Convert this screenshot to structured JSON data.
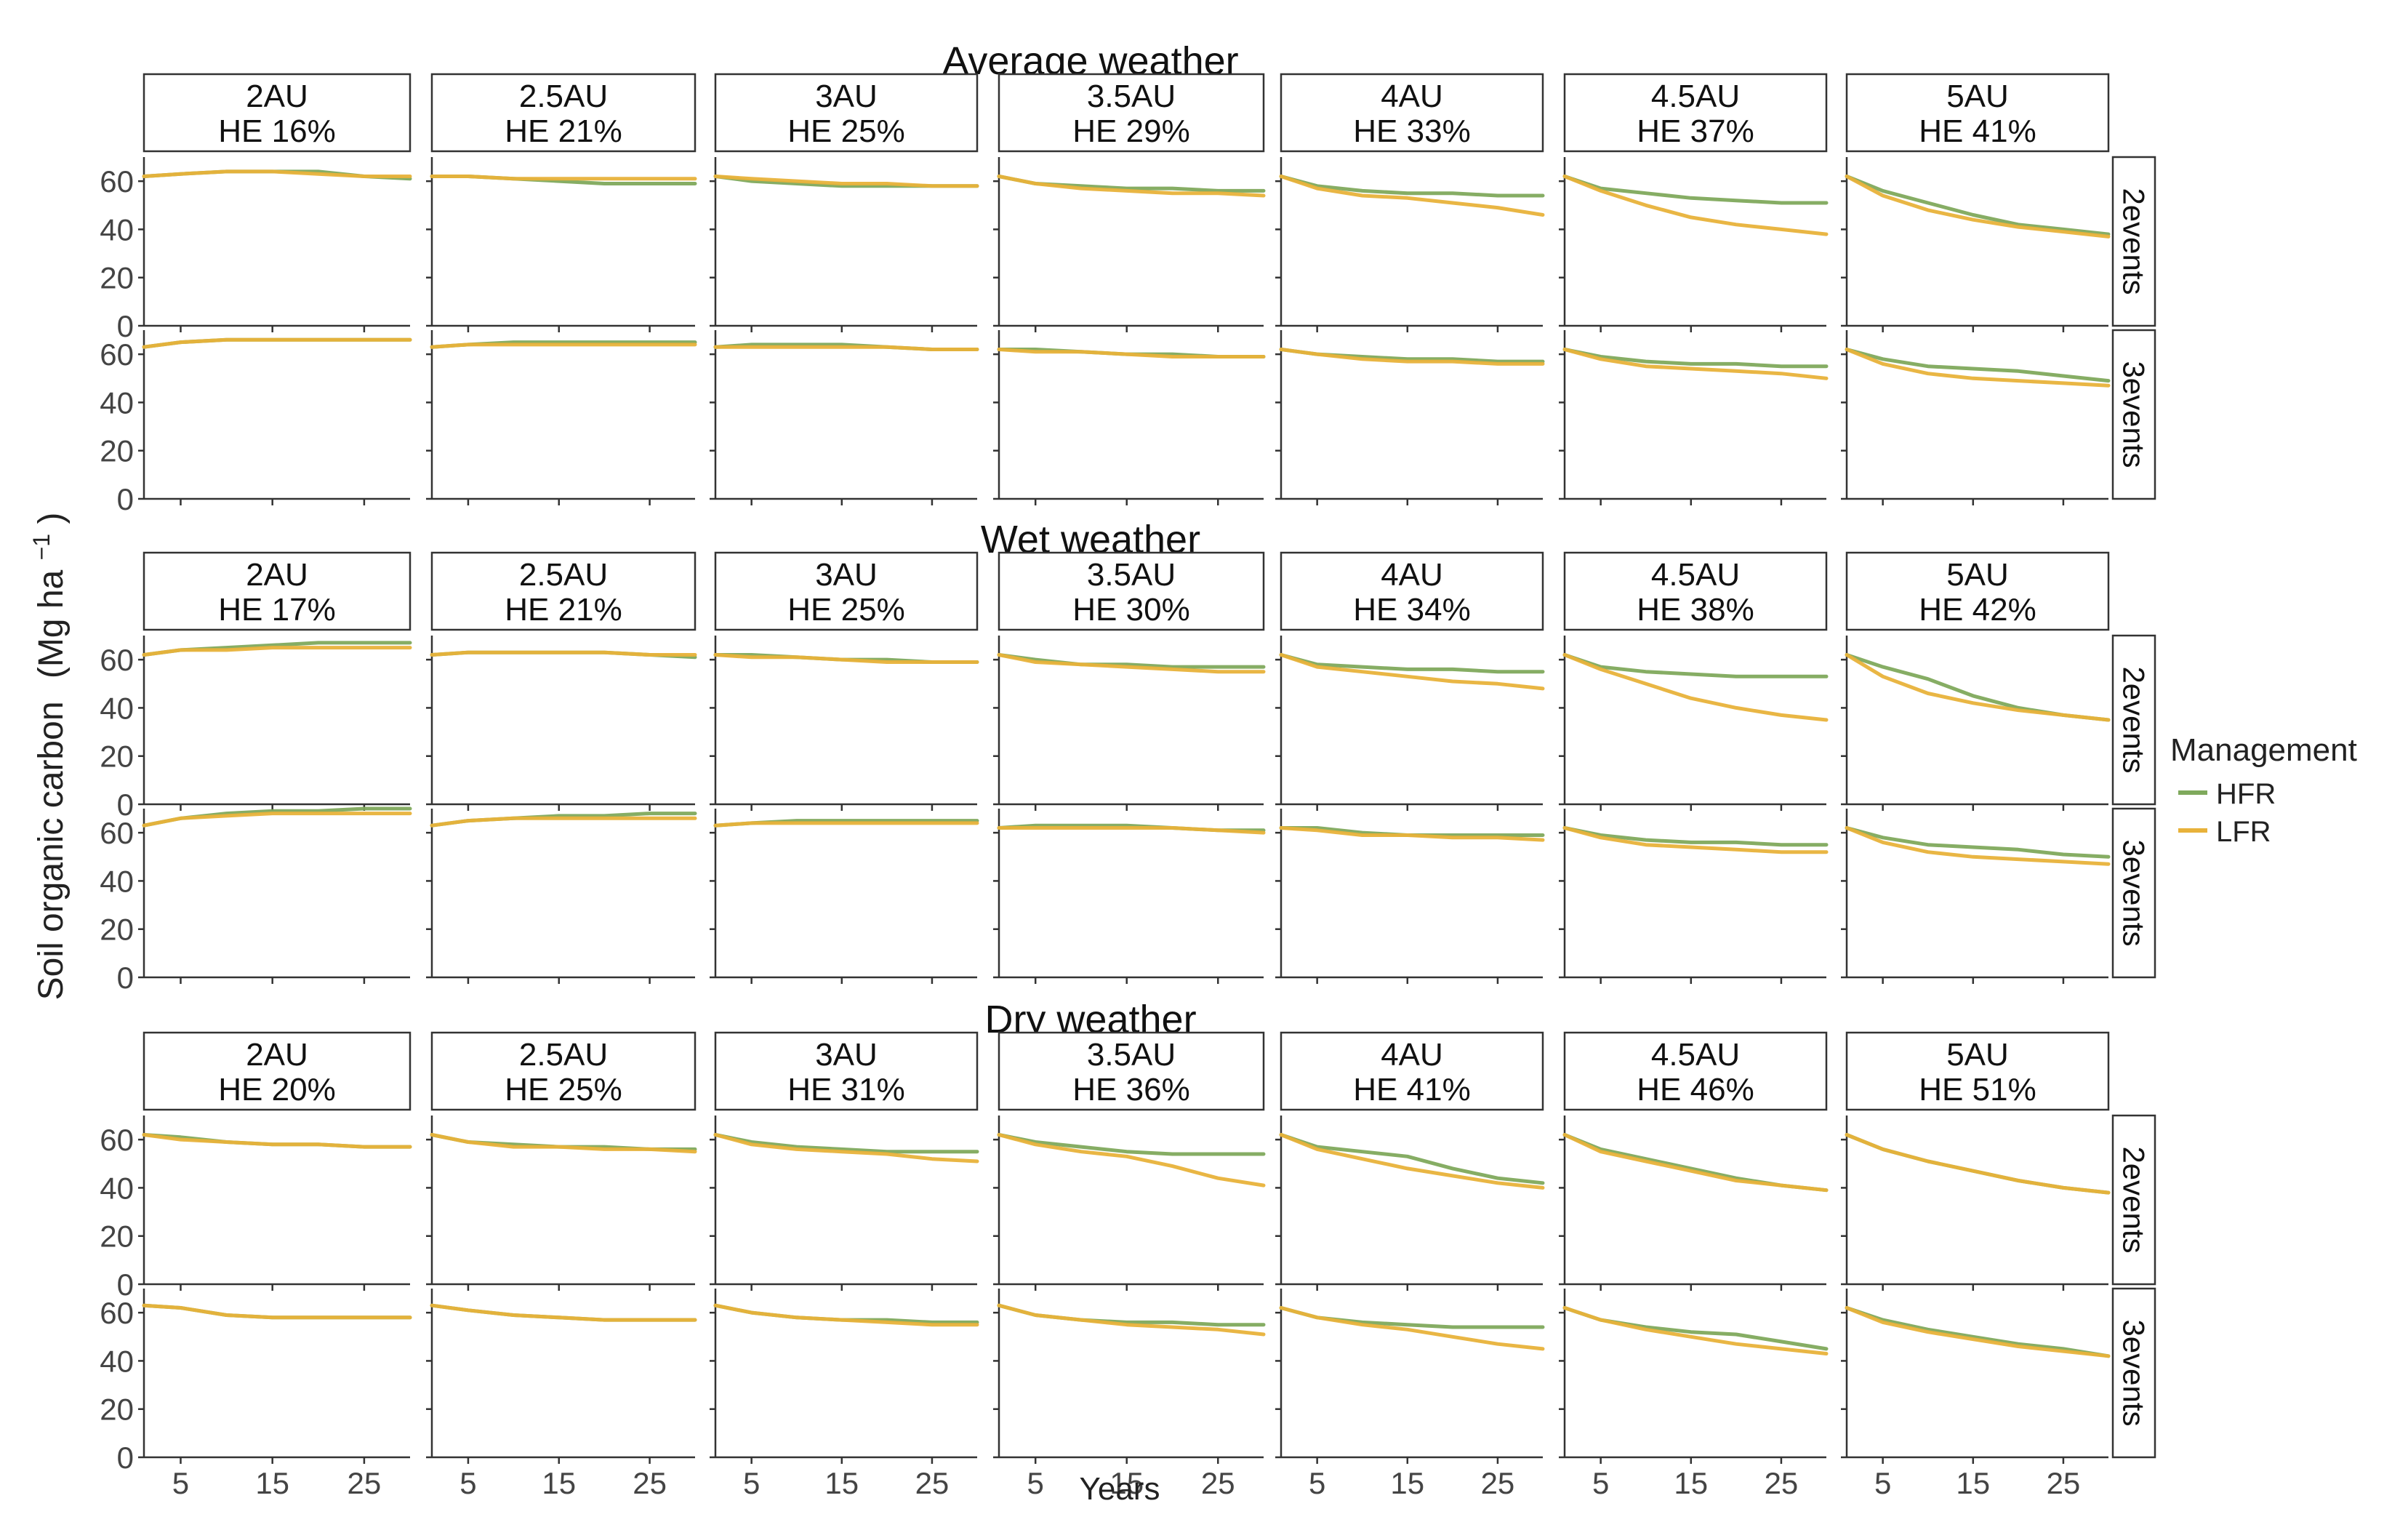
{
  "chart_data": {
    "type": "line",
    "y_axis_label": "Soil organic carbon",
    "y_axis_unit": {
      "base": "(Mg ha",
      "exp": "−1",
      "close": ")"
    },
    "x_axis_label": "Years",
    "x_ticks": [
      5,
      15,
      25
    ],
    "y_ticks": [
      0,
      20,
      40,
      60
    ],
    "xlim": [
      1,
      30
    ],
    "ylim": [
      0,
      70
    ],
    "legend": {
      "title": "Management",
      "position": "right",
      "entries": [
        {
          "name": "HFR",
          "color": "#7fa95c"
        },
        {
          "name": "LFR",
          "color": "#e8b23a"
        }
      ]
    },
    "rows": [
      "2events",
      "3events"
    ],
    "columns": [
      "2AU",
      "2.5AU",
      "3AU",
      "3.5AU",
      "4AU",
      "4.5AU",
      "5AU"
    ],
    "time_points": [
      1,
      5,
      10,
      15,
      20,
      25,
      30
    ],
    "blocks": [
      {
        "title": "Average weather",
        "he_labels": [
          "HE 16%",
          "HE 21%",
          "HE 25%",
          "HE 29%",
          "HE 33%",
          "HE 37%",
          "HE 41%"
        ],
        "panels": [
          [
            {
              "HFR": [
                62,
                63,
                64,
                64,
                64,
                62,
                61
              ],
              "LFR": [
                62,
                63,
                64,
                64,
                63,
                62,
                62
              ]
            },
            {
              "HFR": [
                62,
                62,
                61,
                60,
                59,
                59,
                59
              ],
              "LFR": [
                62,
                62,
                61,
                61,
                61,
                61,
                61
              ]
            },
            {
              "HFR": [
                62,
                60,
                59,
                58,
                58,
                58,
                58
              ],
              "LFR": [
                62,
                61,
                60,
                59,
                59,
                58,
                58
              ]
            },
            {
              "HFR": [
                62,
                59,
                58,
                57,
                57,
                56,
                56
              ],
              "LFR": [
                62,
                59,
                57,
                56,
                55,
                55,
                54
              ]
            },
            {
              "HFR": [
                62,
                58,
                56,
                55,
                55,
                54,
                54
              ],
              "LFR": [
                62,
                57,
                54,
                53,
                51,
                49,
                46
              ]
            },
            {
              "HFR": [
                62,
                57,
                55,
                53,
                52,
                51,
                51
              ],
              "LFR": [
                62,
                56,
                50,
                45,
                42,
                40,
                38
              ]
            },
            {
              "HFR": [
                62,
                56,
                51,
                46,
                42,
                40,
                38
              ],
              "LFR": [
                62,
                54,
                48,
                44,
                41,
                39,
                37
              ]
            }
          ],
          [
            {
              "HFR": [
                63,
                65,
                66,
                66,
                66,
                66,
                66
              ],
              "LFR": [
                63,
                65,
                66,
                66,
                66,
                66,
                66
              ]
            },
            {
              "HFR": [
                63,
                64,
                65,
                65,
                65,
                65,
                65
              ],
              "LFR": [
                63,
                64,
                64,
                64,
                64,
                64,
                64
              ]
            },
            {
              "HFR": [
                63,
                64,
                64,
                64,
                63,
                62,
                62
              ],
              "LFR": [
                63,
                63,
                63,
                63,
                63,
                62,
                62
              ]
            },
            {
              "HFR": [
                62,
                62,
                61,
                60,
                60,
                59,
                59
              ],
              "LFR": [
                62,
                61,
                61,
                60,
                59,
                59,
                59
              ]
            },
            {
              "HFR": [
                62,
                60,
                59,
                58,
                58,
                57,
                57
              ],
              "LFR": [
                62,
                60,
                58,
                57,
                57,
                56,
                56
              ]
            },
            {
              "HFR": [
                62,
                59,
                57,
                56,
                56,
                55,
                55
              ],
              "LFR": [
                62,
                58,
                55,
                54,
                53,
                52,
                50
              ]
            },
            {
              "HFR": [
                62,
                58,
                55,
                54,
                53,
                51,
                49
              ],
              "LFR": [
                62,
                56,
                52,
                50,
                49,
                48,
                47
              ]
            }
          ]
        ]
      },
      {
        "title": "Wet weather",
        "he_labels": [
          "HE 17%",
          "HE 21%",
          "HE 25%",
          "HE 30%",
          "HE 34%",
          "HE 38%",
          "HE 42%"
        ],
        "panels": [
          [
            {
              "HFR": [
                62,
                64,
                65,
                66,
                67,
                67,
                67
              ],
              "LFR": [
                62,
                64,
                64,
                65,
                65,
                65,
                65
              ]
            },
            {
              "HFR": [
                62,
                63,
                63,
                63,
                63,
                62,
                61
              ],
              "LFR": [
                62,
                63,
                63,
                63,
                63,
                62,
                62
              ]
            },
            {
              "HFR": [
                62,
                62,
                61,
                60,
                60,
                59,
                59
              ],
              "LFR": [
                62,
                61,
                61,
                60,
                59,
                59,
                59
              ]
            },
            {
              "HFR": [
                62,
                60,
                58,
                58,
                57,
                57,
                57
              ],
              "LFR": [
                62,
                59,
                58,
                57,
                56,
                55,
                55
              ]
            },
            {
              "HFR": [
                62,
                58,
                57,
                56,
                56,
                55,
                55
              ],
              "LFR": [
                62,
                57,
                55,
                53,
                51,
                50,
                48
              ]
            },
            {
              "HFR": [
                62,
                57,
                55,
                54,
                53,
                53,
                53
              ],
              "LFR": [
                62,
                56,
                50,
                44,
                40,
                37,
                35
              ]
            },
            {
              "HFR": [
                62,
                57,
                52,
                45,
                40,
                37,
                35
              ],
              "LFR": [
                62,
                53,
                46,
                42,
                39,
                37,
                35
              ]
            }
          ],
          [
            {
              "HFR": [
                63,
                66,
                68,
                69,
                69,
                70,
                70
              ],
              "LFR": [
                63,
                66,
                67,
                68,
                68,
                68,
                68
              ]
            },
            {
              "HFR": [
                63,
                65,
                66,
                67,
                67,
                68,
                68
              ],
              "LFR": [
                63,
                65,
                66,
                66,
                66,
                66,
                66
              ]
            },
            {
              "HFR": [
                63,
                64,
                65,
                65,
                65,
                65,
                65
              ],
              "LFR": [
                63,
                64,
                64,
                64,
                64,
                64,
                64
              ]
            },
            {
              "HFR": [
                62,
                63,
                63,
                63,
                62,
                61,
                61
              ],
              "LFR": [
                62,
                62,
                62,
                62,
                62,
                61,
                60
              ]
            },
            {
              "HFR": [
                62,
                62,
                60,
                59,
                59,
                59,
                59
              ],
              "LFR": [
                62,
                61,
                59,
                59,
                58,
                58,
                57
              ]
            },
            {
              "HFR": [
                62,
                59,
                57,
                56,
                56,
                55,
                55
              ],
              "LFR": [
                62,
                58,
                55,
                54,
                53,
                52,
                52
              ]
            },
            {
              "HFR": [
                62,
                58,
                55,
                54,
                53,
                51,
                50
              ],
              "LFR": [
                62,
                56,
                52,
                50,
                49,
                48,
                47
              ]
            }
          ]
        ]
      },
      {
        "title": "Dry weather",
        "he_labels": [
          "HE 20%",
          "HE 25%",
          "HE 31%",
          "HE 36%",
          "HE 41%",
          "HE 46%",
          "HE 51%"
        ],
        "panels": [
          [
            {
              "HFR": [
                62,
                61,
                59,
                58,
                58,
                57,
                57
              ],
              "LFR": [
                62,
                60,
                59,
                58,
                58,
                57,
                57
              ]
            },
            {
              "HFR": [
                62,
                59,
                58,
                57,
                57,
                56,
                56
              ],
              "LFR": [
                62,
                59,
                57,
                57,
                56,
                56,
                55
              ]
            },
            {
              "HFR": [
                62,
                59,
                57,
                56,
                55,
                55,
                55
              ],
              "LFR": [
                62,
                58,
                56,
                55,
                54,
                52,
                51
              ]
            },
            {
              "HFR": [
                62,
                59,
                57,
                55,
                54,
                54,
                54
              ],
              "LFR": [
                62,
                58,
                55,
                53,
                49,
                44,
                41
              ]
            },
            {
              "HFR": [
                62,
                57,
                55,
                53,
                48,
                44,
                42
              ],
              "LFR": [
                62,
                56,
                52,
                48,
                45,
                42,
                40
              ]
            },
            {
              "HFR": [
                62,
                56,
                52,
                48,
                44,
                41,
                39
              ],
              "LFR": [
                62,
                55,
                51,
                47,
                43,
                41,
                39
              ]
            },
            {
              "HFR": [
                62,
                56,
                51,
                47,
                43,
                40,
                38
              ],
              "LFR": [
                62,
                56,
                51,
                47,
                43,
                40,
                38
              ]
            }
          ],
          [
            {
              "HFR": [
                63,
                62,
                59,
                58,
                58,
                58,
                58
              ],
              "LFR": [
                63,
                62,
                59,
                58,
                58,
                58,
                58
              ]
            },
            {
              "HFR": [
                63,
                61,
                59,
                58,
                57,
                57,
                57
              ],
              "LFR": [
                63,
                61,
                59,
                58,
                57,
                57,
                57
              ]
            },
            {
              "HFR": [
                63,
                60,
                58,
                57,
                57,
                56,
                56
              ],
              "LFR": [
                63,
                60,
                58,
                57,
                56,
                55,
                55
              ]
            },
            {
              "HFR": [
                63,
                59,
                57,
                56,
                56,
                55,
                55
              ],
              "LFR": [
                63,
                59,
                57,
                55,
                54,
                53,
                51
              ]
            },
            {
              "HFR": [
                62,
                58,
                56,
                55,
                54,
                54,
                54
              ],
              "LFR": [
                62,
                58,
                55,
                53,
                50,
                47,
                45
              ]
            },
            {
              "HFR": [
                62,
                57,
                54,
                52,
                51,
                48,
                45
              ],
              "LFR": [
                62,
                57,
                53,
                50,
                47,
                45,
                43
              ]
            },
            {
              "HFR": [
                62,
                57,
                53,
                50,
                47,
                45,
                42
              ],
              "LFR": [
                62,
                56,
                52,
                49,
                46,
                44,
                42
              ]
            }
          ]
        ]
      }
    ]
  }
}
